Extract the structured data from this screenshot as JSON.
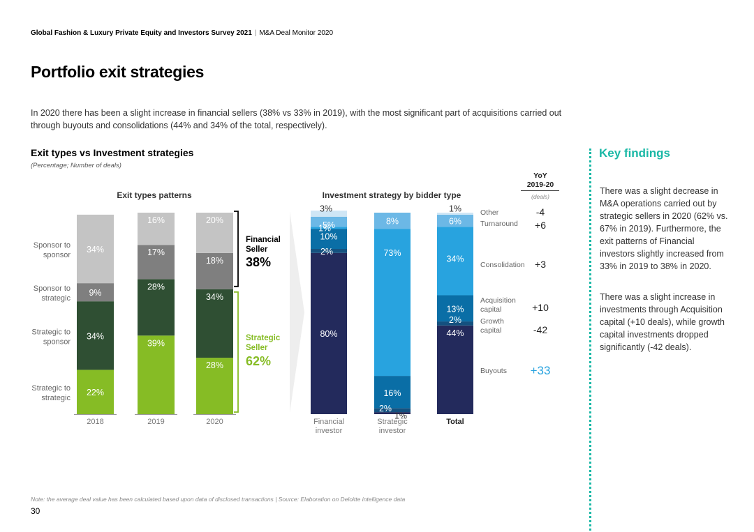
{
  "header": {
    "report": "Global Fashion & Luxury Private Equity and Investors Survey 2021",
    "separator": "|",
    "section": "M&A Deal Monitor 2020"
  },
  "title": "Portfolio exit strategies",
  "intro": "In 2020 there has been a slight increase in financial sellers (38% vs 33% in 2019), with the most significant part of acquisitions carried out through buyouts and consolidations (44% and 34% of the total, respectively).",
  "chart_header": {
    "title": "Exit types vs Investment strategies",
    "subtitle": "(Percentage; Number of deals)"
  },
  "key_findings": {
    "title": "Key findings",
    "paragraphs": [
      "There was a slight decrease in M&A operations carried out by strategic sellers in 2020 (62% vs. 67% in 2019). Furthermore, the exit patterns of Financial investors slightly increased from 33% in 2019 to 38% in 2020.",
      "There was a slight increase in investments through Acquisition capital (+10 deals), while growth capital investments dropped significantly (-42 deals)."
    ]
  },
  "footnote": "Note: the average deal value has been calculated based upon data of disclosed transactions | Source: Elaboration on Deloitte intelligence data",
  "page_number": "30",
  "colors": {
    "strategic_to_strategic": "#86bc25",
    "strategic_to_sponsor": "#2f4f33",
    "sponsor_to_strategic": "#7f7f7f",
    "sponsor_to_sponsor": "#c4c4c4",
    "buyouts": "#232a5c",
    "growth_capital": "#14517f",
    "acquisition_capital": "#0a6ea6",
    "consolidation": "#28a3df",
    "turnaround": "#6cb8e6",
    "other": "#cfe6f5",
    "financial_seller": "#000000",
    "strategic_seller": "#86bc25",
    "accent": "#1ab8a6",
    "highlight": "#28a3df"
  },
  "chart_data": [
    {
      "type": "bar",
      "stacked": true,
      "title": "Exit types patterns",
      "categories": [
        "2018",
        "2019",
        "2020"
      ],
      "series": [
        {
          "name": "Strategic to strategic",
          "key": "strategic_to_strategic",
          "values": [
            22,
            39,
            28
          ]
        },
        {
          "name": "Strategic to sponsor",
          "key": "strategic_to_sponsor",
          "values": [
            34,
            28,
            34
          ]
        },
        {
          "name": "Sponsor to strategic",
          "key": "sponsor_to_strategic",
          "values": [
            9,
            17,
            18
          ]
        },
        {
          "name": "Sponsor to sponsor",
          "key": "sponsor_to_sponsor",
          "values": [
            34,
            16,
            20
          ]
        }
      ],
      "series_labels": [
        [
          "Strategic to",
          "strategic"
        ],
        [
          "Strategic to",
          "sponsor"
        ],
        [
          "Sponsor to",
          "strategic"
        ],
        [
          "Sponsor to",
          "sponsor"
        ]
      ],
      "ylim": [
        0,
        100
      ],
      "brackets": [
        {
          "label": [
            "Financial",
            "Seller"
          ],
          "value": "38%",
          "key": "financial_seller"
        },
        {
          "label": [
            "Strategic",
            "Seller"
          ],
          "value": "62%",
          "key": "strategic_seller"
        }
      ]
    },
    {
      "type": "bar",
      "stacked": true,
      "title": "Investment strategy by bidder type",
      "categories": [
        [
          "Financial",
          "investor"
        ],
        [
          "Strategic",
          "investor"
        ],
        [
          "Total"
        ]
      ],
      "series": [
        {
          "name": "Buyouts",
          "key": "buyouts",
          "values": [
            80,
            1,
            44
          ]
        },
        {
          "name": "Growth capital",
          "key": "growth_capital",
          "values": [
            2,
            2,
            2
          ]
        },
        {
          "name": "Acquisition capital",
          "key": "acquisition_capital",
          "values": [
            10,
            16,
            13
          ]
        },
        {
          "name": "Consolidation",
          "key": "consolidation",
          "values": [
            1,
            73,
            34
          ]
        },
        {
          "name": "Turnaround",
          "key": "turnaround",
          "values": [
            5,
            8,
            6
          ]
        },
        {
          "name": "Other",
          "key": "other",
          "values": [
            3,
            0,
            1
          ]
        }
      ],
      "data_labels": [
        [
          "80%",
          "2%",
          "10%",
          "1%",
          "5%",
          "3%"
        ],
        [
          "1%",
          "2%",
          "16%",
          "73%",
          "8%",
          ""
        ],
        [
          "44%",
          "2%",
          "13%",
          "34%",
          "6%",
          "1%"
        ]
      ],
      "legend_labels": [
        [
          "Buyouts"
        ],
        [
          "Growth",
          "capital"
        ],
        [
          "Acquisition",
          "capital"
        ],
        [
          "Consolidation"
        ],
        [
          "Turnaround"
        ],
        [
          "Other"
        ]
      ],
      "yoy": {
        "title": [
          "YoY",
          "2019-20"
        ],
        "unit": "(deals)",
        "values": [
          "+33",
          "-42",
          "+10",
          "+3",
          "+6",
          "-4"
        ]
      },
      "ylim": [
        0,
        100
      ]
    }
  ]
}
